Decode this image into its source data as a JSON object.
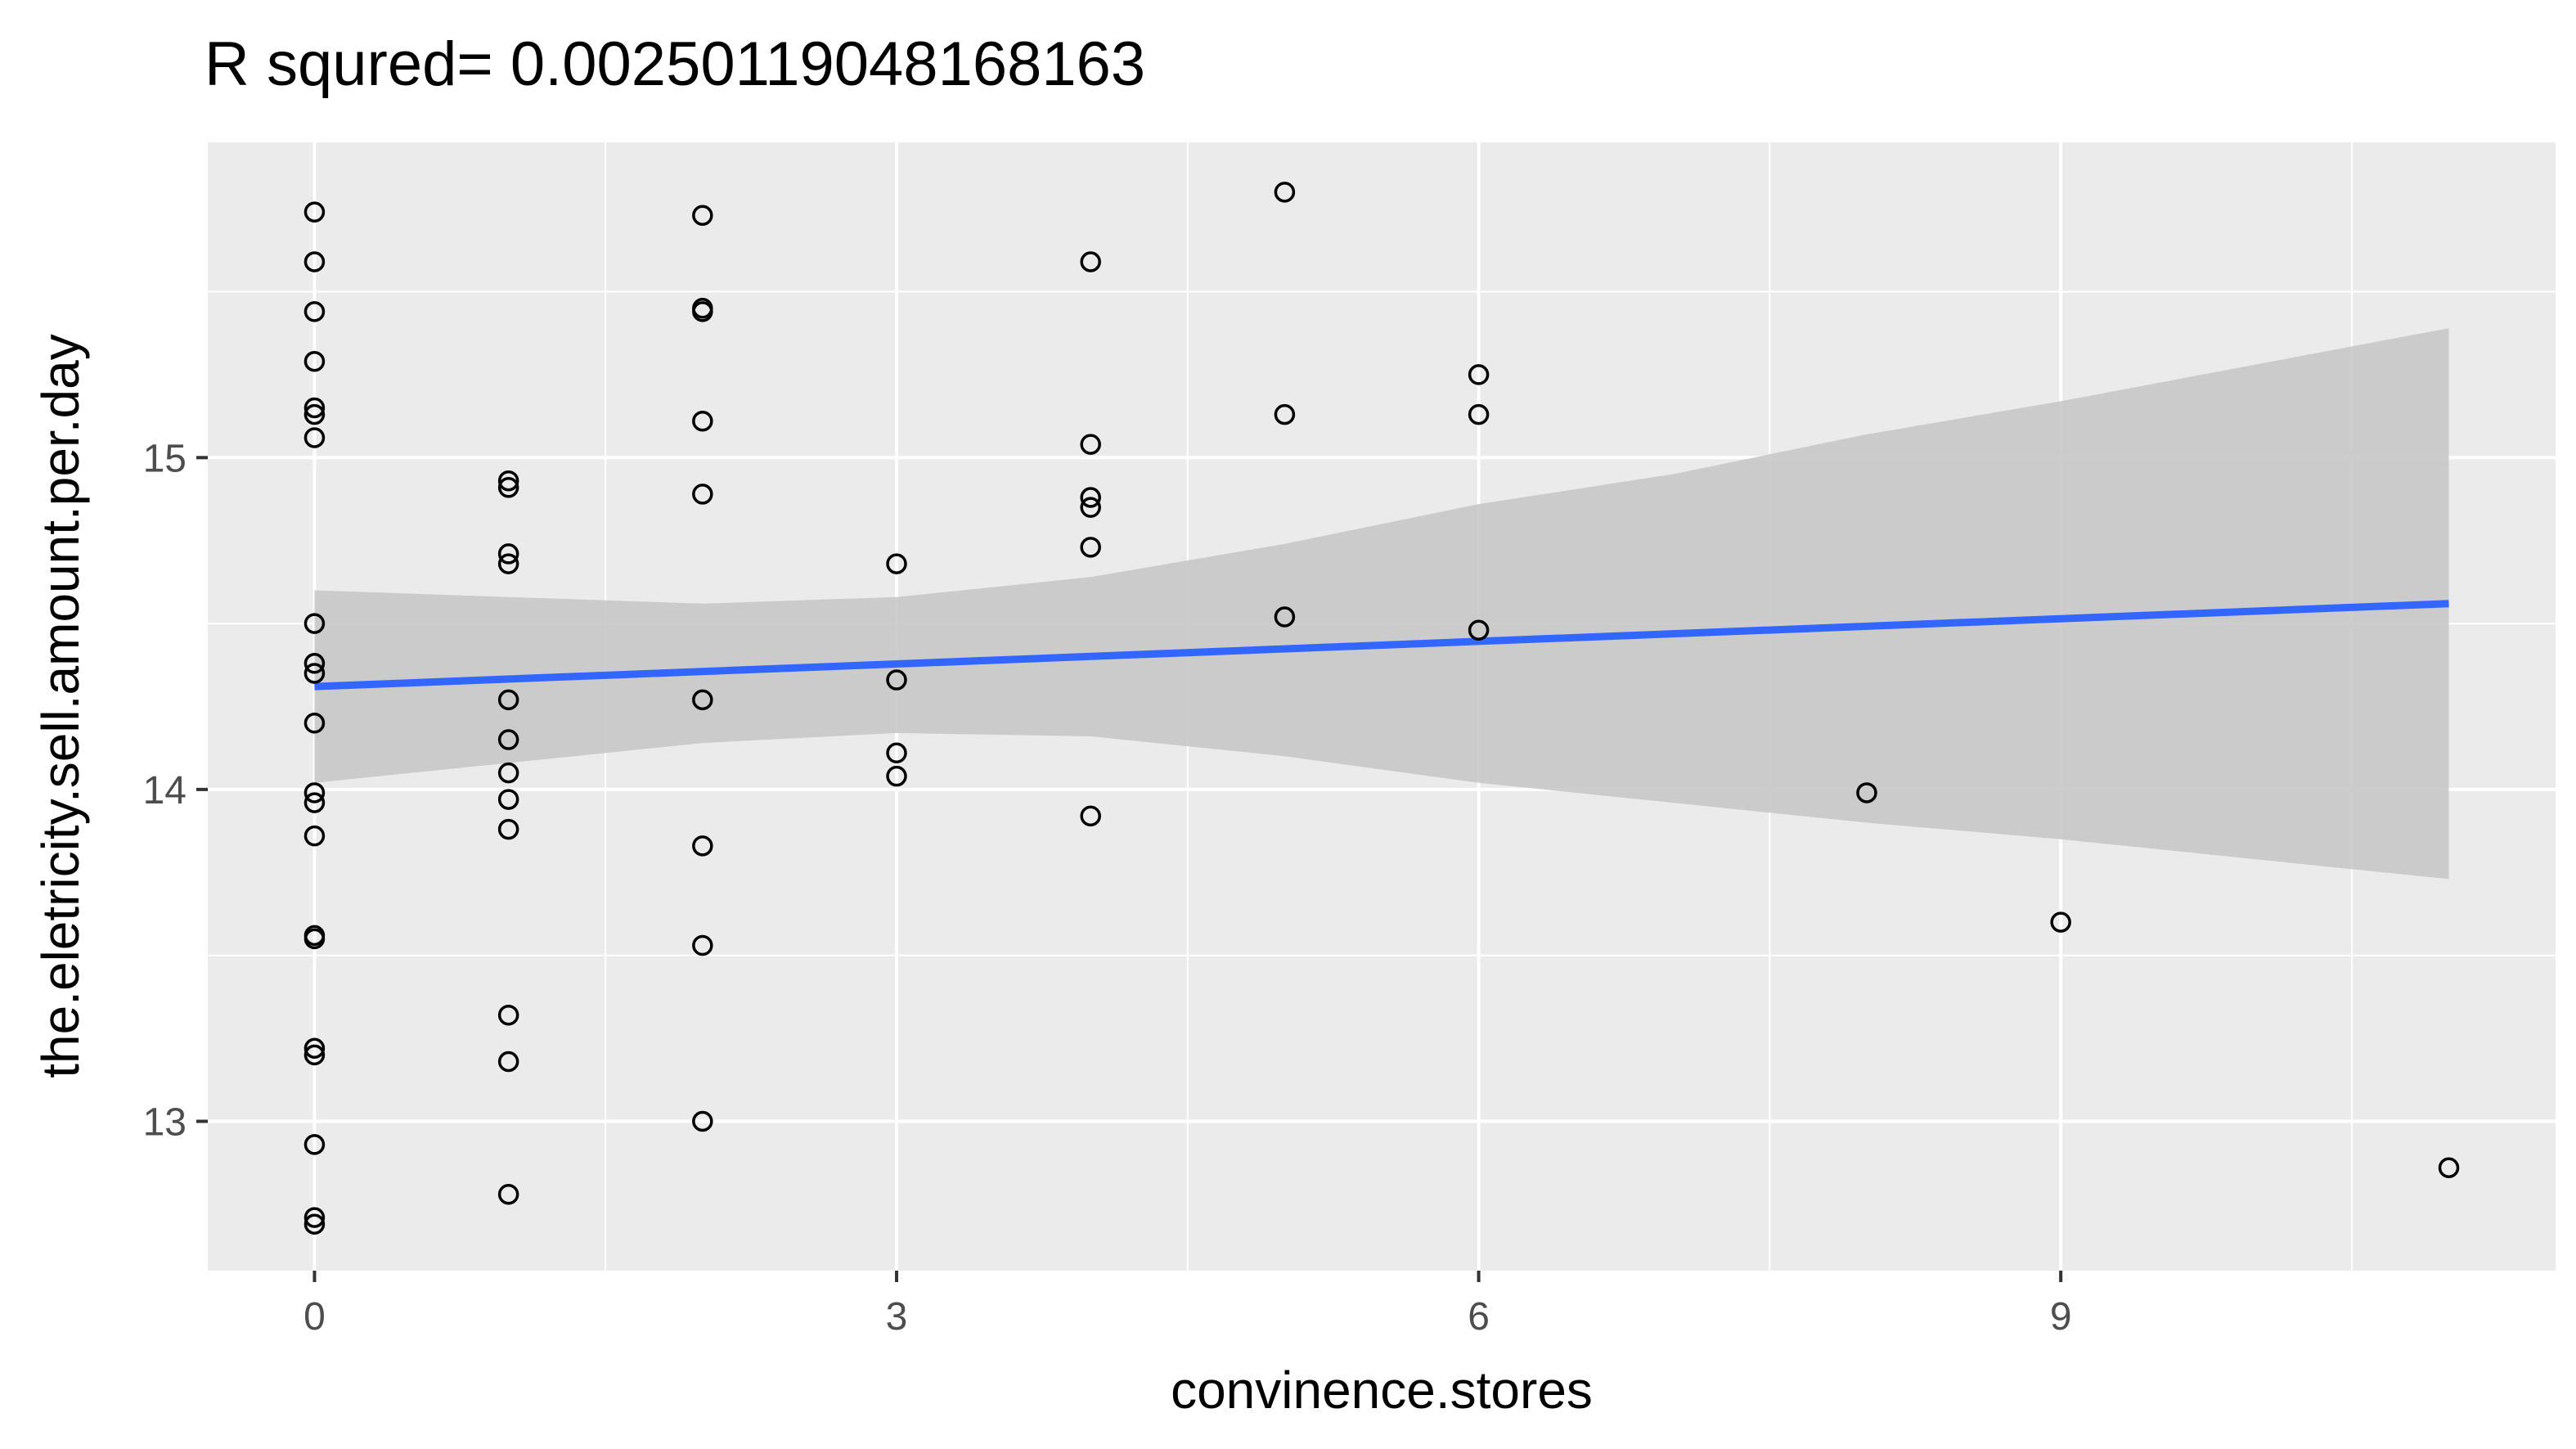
{
  "chart_data": {
    "type": "scatter",
    "title": "R squred= 0.00250119048168163",
    "xlabel": "convinence.stores",
    "ylabel": "the.eletricity.sell.amount.per.day",
    "xlim": [
      -0.55,
      11.55
    ],
    "ylim": [
      12.55,
      15.95
    ],
    "x_ticks": [
      0,
      3,
      6,
      9
    ],
    "x_tick_labels": [
      "0",
      "3",
      "6",
      "9"
    ],
    "y_ticks": [
      13,
      14,
      15
    ],
    "y_tick_labels": [
      "13",
      "14",
      "15"
    ],
    "grid": true,
    "legend": "none",
    "colors": {
      "panel": "#ebebeb",
      "grid": "#ffffff",
      "point_stroke": "#000000",
      "fit_line": "#3366ff",
      "confidence_band": "#c8c8c8"
    },
    "points": [
      {
        "x": 0,
        "y": 15.74
      },
      {
        "x": 0,
        "y": 15.59
      },
      {
        "x": 0,
        "y": 15.44
      },
      {
        "x": 0,
        "y": 15.29
      },
      {
        "x": 0,
        "y": 15.15
      },
      {
        "x": 0,
        "y": 15.13
      },
      {
        "x": 0,
        "y": 15.06
      },
      {
        "x": 0,
        "y": 14.5
      },
      {
        "x": 0,
        "y": 14.38
      },
      {
        "x": 0,
        "y": 14.35
      },
      {
        "x": 0,
        "y": 14.2
      },
      {
        "x": 0,
        "y": 13.99
      },
      {
        "x": 0,
        "y": 13.96
      },
      {
        "x": 0,
        "y": 13.86
      },
      {
        "x": 0,
        "y": 13.56
      },
      {
        "x": 0,
        "y": 13.55
      },
      {
        "x": 0,
        "y": 13.22
      },
      {
        "x": 0,
        "y": 13.2
      },
      {
        "x": 0,
        "y": 12.93
      },
      {
        "x": 0,
        "y": 12.71
      },
      {
        "x": 0,
        "y": 12.69
      },
      {
        "x": 1,
        "y": 14.93
      },
      {
        "x": 1,
        "y": 14.91
      },
      {
        "x": 1,
        "y": 14.71
      },
      {
        "x": 1,
        "y": 14.68
      },
      {
        "x": 1,
        "y": 14.27
      },
      {
        "x": 1,
        "y": 14.15
      },
      {
        "x": 1,
        "y": 14.05
      },
      {
        "x": 1,
        "y": 13.97
      },
      {
        "x": 1,
        "y": 13.88
      },
      {
        "x": 1,
        "y": 13.32
      },
      {
        "x": 1,
        "y": 13.18
      },
      {
        "x": 1,
        "y": 12.78
      },
      {
        "x": 2,
        "y": 15.73
      },
      {
        "x": 2,
        "y": 15.45
      },
      {
        "x": 2,
        "y": 15.44
      },
      {
        "x": 2,
        "y": 15.11
      },
      {
        "x": 2,
        "y": 14.89
      },
      {
        "x": 2,
        "y": 14.27
      },
      {
        "x": 2,
        "y": 13.83
      },
      {
        "x": 2,
        "y": 13.53
      },
      {
        "x": 2,
        "y": 13.0
      },
      {
        "x": 3,
        "y": 14.68
      },
      {
        "x": 3,
        "y": 14.33
      },
      {
        "x": 3,
        "y": 14.11
      },
      {
        "x": 3,
        "y": 14.04
      },
      {
        "x": 4,
        "y": 15.59
      },
      {
        "x": 4,
        "y": 15.04
      },
      {
        "x": 4,
        "y": 14.88
      },
      {
        "x": 4,
        "y": 14.85
      },
      {
        "x": 4,
        "y": 14.73
      },
      {
        "x": 4,
        "y": 13.92
      },
      {
        "x": 5,
        "y": 15.8
      },
      {
        "x": 5,
        "y": 15.13
      },
      {
        "x": 5,
        "y": 14.52
      },
      {
        "x": 6,
        "y": 15.25
      },
      {
        "x": 6,
        "y": 15.13
      },
      {
        "x": 6,
        "y": 14.48
      },
      {
        "x": 8,
        "y": 13.99
      },
      {
        "x": 9,
        "y": 13.6
      },
      {
        "x": 11,
        "y": 12.86
      }
    ],
    "fit_line": {
      "x": [
        0,
        11
      ],
      "y": [
        14.31,
        14.56
      ]
    },
    "confidence_band": [
      {
        "x": 0,
        "lower": 14.02,
        "upper": 14.6
      },
      {
        "x": 1,
        "lower": 14.08,
        "upper": 14.58
      },
      {
        "x": 2,
        "lower": 14.14,
        "upper": 14.56
      },
      {
        "x": 3,
        "lower": 14.17,
        "upper": 14.58
      },
      {
        "x": 4,
        "lower": 14.16,
        "upper": 14.64
      },
      {
        "x": 5,
        "lower": 14.1,
        "upper": 14.74
      },
      {
        "x": 6,
        "lower": 14.02,
        "upper": 14.86
      },
      {
        "x": 7,
        "lower": 13.96,
        "upper": 14.95
      },
      {
        "x": 8,
        "lower": 13.9,
        "upper": 15.07
      },
      {
        "x": 9,
        "lower": 13.85,
        "upper": 15.17
      },
      {
        "x": 10,
        "lower": 13.79,
        "upper": 15.28
      },
      {
        "x": 11,
        "lower": 13.73,
        "upper": 15.39
      }
    ]
  }
}
